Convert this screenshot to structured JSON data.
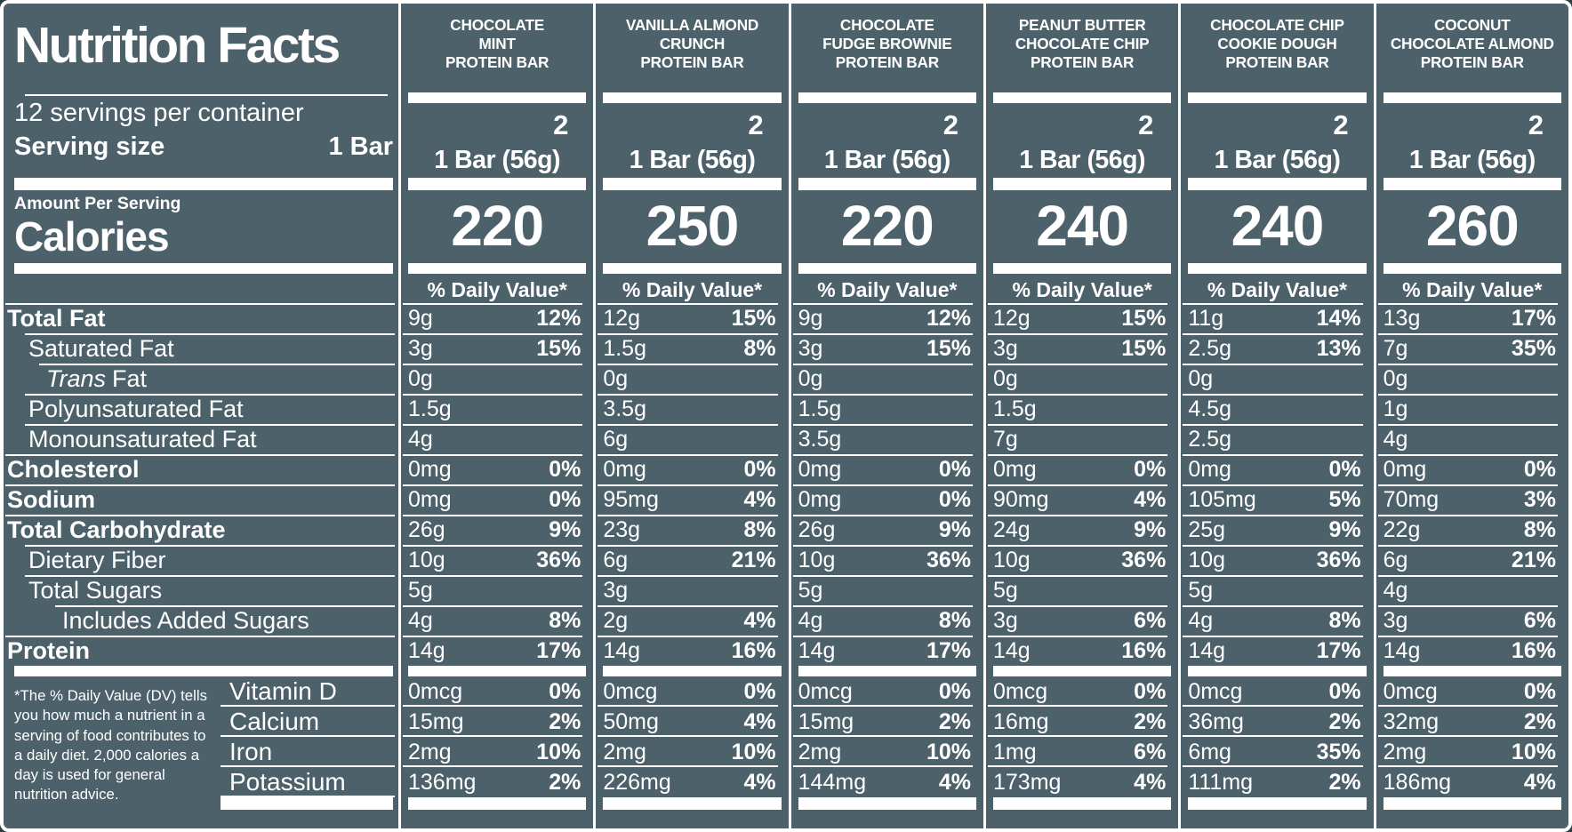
{
  "colors": {
    "background": "#4d616b",
    "text": "#ffffff"
  },
  "left_panel": {
    "title": "Nutrition Facts",
    "servings_per_container": "12 servings per container",
    "serving_size_label": "Serving size",
    "serving_size_value": "1 Bar",
    "amount_per_serving_label": "Amount Per Serving",
    "calories_label": "Calories",
    "footnote": "*The % Daily Value (DV) tells you how much a nutrient in a serving of food contributes to a daily diet. 2,000 calories a day is used for general nutrition advice."
  },
  "daily_value_header": "% Daily Value*",
  "nutrient_rows": [
    {
      "label": "Total Fat",
      "indent": 0,
      "bold": true
    },
    {
      "label": "Saturated Fat",
      "indent": 1,
      "bold": false
    },
    {
      "label": "Fat",
      "italic_prefix": "Trans",
      "indent": 2,
      "bold": false
    },
    {
      "label": "Polyunsaturated Fat",
      "indent": 1,
      "bold": false
    },
    {
      "label": "Monounsaturated Fat",
      "indent": 1,
      "bold": false
    },
    {
      "label": "Cholesterol",
      "indent": 0,
      "bold": true
    },
    {
      "label": "Sodium",
      "indent": 0,
      "bold": true
    },
    {
      "label": "Total Carbohydrate",
      "indent": 0,
      "bold": true
    },
    {
      "label": "Dietary Fiber",
      "indent": 1,
      "bold": false
    },
    {
      "label": "Total Sugars",
      "indent": 1,
      "bold": false
    },
    {
      "label": "Includes Added Sugars",
      "indent": 3,
      "bold": false
    },
    {
      "label": "Protein",
      "indent": 0,
      "bold": true
    }
  ],
  "micronutrient_rows": [
    {
      "label": "Vitamin D"
    },
    {
      "label": "Calcium"
    },
    {
      "label": "Iron"
    },
    {
      "label": "Potassium"
    }
  ],
  "products": [
    {
      "name_lines": [
        "CHOCOLATE",
        "MINT",
        "PROTEIN BAR"
      ],
      "servings_per_container": "2",
      "serving_size": "1 Bar (56g)",
      "calories": "220",
      "nutrients": [
        [
          "9g",
          "12%"
        ],
        [
          "3g",
          "15%"
        ],
        [
          "0g",
          ""
        ],
        [
          "1.5g",
          ""
        ],
        [
          "4g",
          ""
        ],
        [
          "0mg",
          "0%"
        ],
        [
          "0mg",
          "0%"
        ],
        [
          "26g",
          "9%"
        ],
        [
          "10g",
          "36%"
        ],
        [
          "5g",
          ""
        ],
        [
          "4g",
          "8%"
        ],
        [
          "14g",
          "17%"
        ]
      ],
      "micros": [
        [
          "0mcg",
          "0%"
        ],
        [
          "15mg",
          "2%"
        ],
        [
          "2mg",
          "10%"
        ],
        [
          "136mg",
          "2%"
        ]
      ]
    },
    {
      "name_lines": [
        "VANILLA ALMOND",
        "CRUNCH",
        "PROTEIN BAR"
      ],
      "servings_per_container": "2",
      "serving_size": "1 Bar (56g)",
      "calories": "250",
      "nutrients": [
        [
          "12g",
          "15%"
        ],
        [
          "1.5g",
          "8%"
        ],
        [
          "0g",
          ""
        ],
        [
          "3.5g",
          ""
        ],
        [
          "6g",
          ""
        ],
        [
          "0mg",
          "0%"
        ],
        [
          "95mg",
          "4%"
        ],
        [
          "23g",
          "8%"
        ],
        [
          "6g",
          "21%"
        ],
        [
          "3g",
          ""
        ],
        [
          "2g",
          "4%"
        ],
        [
          "14g",
          "16%"
        ]
      ],
      "micros": [
        [
          "0mcg",
          "0%"
        ],
        [
          "50mg",
          "4%"
        ],
        [
          "2mg",
          "10%"
        ],
        [
          "226mg",
          "4%"
        ]
      ]
    },
    {
      "name_lines": [
        "CHOCOLATE",
        "FUDGE BROWNIE",
        "PROTEIN BAR"
      ],
      "servings_per_container": "2",
      "serving_size": "1 Bar (56g)",
      "calories": "220",
      "nutrients": [
        [
          "9g",
          "12%"
        ],
        [
          "3g",
          "15%"
        ],
        [
          "0g",
          ""
        ],
        [
          "1.5g",
          ""
        ],
        [
          "3.5g",
          ""
        ],
        [
          "0mg",
          "0%"
        ],
        [
          "0mg",
          "0%"
        ],
        [
          "26g",
          "9%"
        ],
        [
          "10g",
          "36%"
        ],
        [
          "5g",
          ""
        ],
        [
          "4g",
          "8%"
        ],
        [
          "14g",
          "17%"
        ]
      ],
      "micros": [
        [
          "0mcg",
          "0%"
        ],
        [
          "15mg",
          "2%"
        ],
        [
          "2mg",
          "10%"
        ],
        [
          "144mg",
          "4%"
        ]
      ]
    },
    {
      "name_lines": [
        "PEANUT BUTTER",
        "CHOCOLATE CHIP",
        "PROTEIN BAR"
      ],
      "servings_per_container": "2",
      "serving_size": "1 Bar (56g)",
      "calories": "240",
      "nutrients": [
        [
          "12g",
          "15%"
        ],
        [
          "3g",
          "15%"
        ],
        [
          "0g",
          ""
        ],
        [
          "1.5g",
          ""
        ],
        [
          "7g",
          ""
        ],
        [
          "0mg",
          "0%"
        ],
        [
          "90mg",
          "4%"
        ],
        [
          "24g",
          "9%"
        ],
        [
          "10g",
          "36%"
        ],
        [
          "5g",
          ""
        ],
        [
          "3g",
          "6%"
        ],
        [
          "14g",
          "16%"
        ]
      ],
      "micros": [
        [
          "0mcg",
          "0%"
        ],
        [
          "16mg",
          "2%"
        ],
        [
          "1mg",
          "6%"
        ],
        [
          "173mg",
          "4%"
        ]
      ]
    },
    {
      "name_lines": [
        "CHOCOLATE CHIP",
        "COOKIE DOUGH",
        "PROTEIN BAR"
      ],
      "servings_per_container": "2",
      "serving_size": "1 Bar (56g)",
      "calories": "240",
      "nutrients": [
        [
          "11g",
          "14%"
        ],
        [
          "2.5g",
          "13%"
        ],
        [
          "0g",
          ""
        ],
        [
          "4.5g",
          ""
        ],
        [
          "2.5g",
          ""
        ],
        [
          "0mg",
          "0%"
        ],
        [
          "105mg",
          "5%"
        ],
        [
          "25g",
          "9%"
        ],
        [
          "10g",
          "36%"
        ],
        [
          "5g",
          ""
        ],
        [
          "4g",
          "8%"
        ],
        [
          "14g",
          "17%"
        ]
      ],
      "micros": [
        [
          "0mcg",
          "0%"
        ],
        [
          "36mg",
          "2%"
        ],
        [
          "6mg",
          "35%"
        ],
        [
          "111mg",
          "2%"
        ]
      ]
    },
    {
      "name_lines": [
        "COCONUT",
        "CHOCOLATE ALMOND",
        "PROTEIN BAR"
      ],
      "servings_per_container": "2",
      "serving_size": "1 Bar (56g)",
      "calories": "260",
      "nutrients": [
        [
          "13g",
          "17%"
        ],
        [
          "7g",
          "35%"
        ],
        [
          "0g",
          ""
        ],
        [
          "1g",
          ""
        ],
        [
          "4g",
          ""
        ],
        [
          "0mg",
          "0%"
        ],
        [
          "70mg",
          "3%"
        ],
        [
          "22g",
          "8%"
        ],
        [
          "6g",
          "21%"
        ],
        [
          "4g",
          ""
        ],
        [
          "3g",
          "6%"
        ],
        [
          "14g",
          "16%"
        ]
      ],
      "micros": [
        [
          "0mcg",
          "0%"
        ],
        [
          "32mg",
          "2%"
        ],
        [
          "2mg",
          "10%"
        ],
        [
          "186mg",
          "4%"
        ]
      ]
    }
  ]
}
